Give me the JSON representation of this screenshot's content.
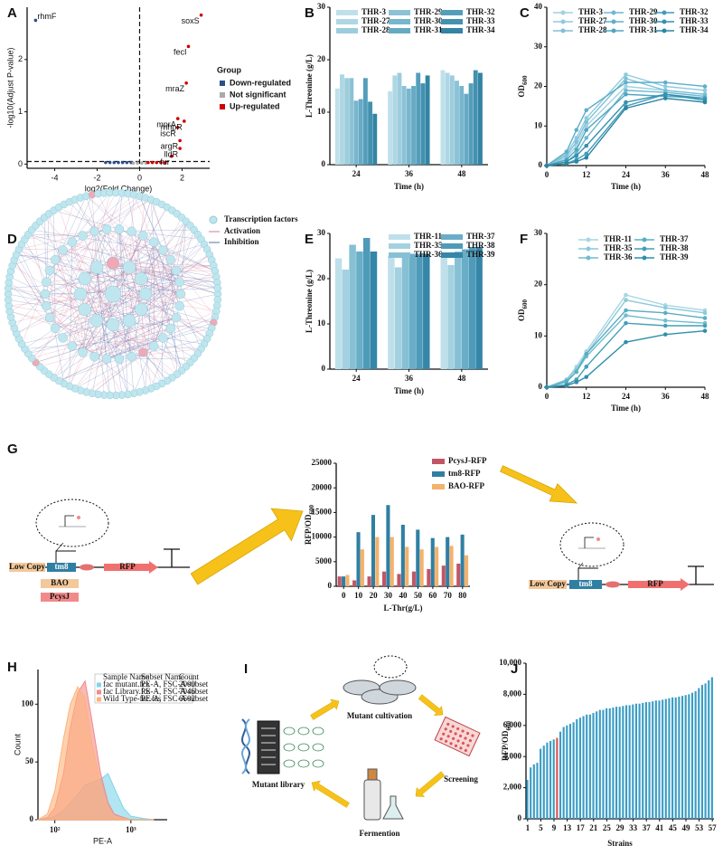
{
  "panels": [
    "A",
    "B",
    "C",
    "D",
    "E",
    "F",
    "G",
    "H",
    "I",
    "J"
  ],
  "network": {
    "legend": [
      "Transcription factors",
      "Activation",
      "Inhibition"
    ]
  },
  "construct_left": {
    "labels": [
      "Low Copy",
      "tm8",
      "BAO",
      "PcysJ",
      "RFP"
    ]
  },
  "construct_right": {
    "labels": [
      "Low Copy",
      "tm8",
      "RFP"
    ]
  },
  "workflow": {
    "steps": [
      "Mutant library",
      "Mutant cultivation",
      "Screening",
      "Fermention"
    ]
  },
  "chart_data": [
    {
      "type": "scatter",
      "xlabel": "log2(Fold Change)",
      "ylabel": "-log10(Adjust P-value)",
      "xlim": [
        -5.3,
        3.3
      ],
      "ylim": [
        -0.08,
        3.0
      ],
      "xticks": [
        -4,
        -2,
        0,
        2
      ],
      "yticks": [
        0,
        1,
        2
      ],
      "hlines": [
        0.05
      ],
      "vlines": [
        0
      ],
      "legend_title": "Group",
      "series": [
        {
          "name": "Down-regulated",
          "color": "#2b4f8c",
          "x": [
            -4.9,
            -1.6,
            -1.4,
            -1.2,
            -1.0,
            -0.8,
            -0.6,
            -0.4
          ],
          "values": [
            2.75,
            0.03,
            0.03,
            0.03,
            0.03,
            0.03,
            0.03,
            0.03
          ],
          "point_labels": [
            "rhmF",
            null,
            null,
            null,
            null,
            null,
            null,
            null
          ]
        },
        {
          "name": "Not significant",
          "color": "#aaaaaa",
          "x": [
            -0.3,
            -0.1,
            0.1,
            0.3
          ],
          "values": [
            0.02,
            0.02,
            0.02,
            0.02
          ]
        },
        {
          "name": "Up-regulated",
          "color": "#cc0000",
          "x": [
            0.4,
            0.6,
            0.8,
            1.0,
            1.2,
            1.5,
            1.9,
            1.9,
            1.8,
            2.1,
            1.8,
            2.2,
            2.3,
            2.9
          ],
          "values": [
            0.03,
            0.03,
            0.03,
            0.03,
            0.03,
            0.15,
            0.3,
            0.45,
            0.7,
            0.82,
            0.87,
            1.55,
            2.25,
            2.85
          ],
          "point_labels": [
            null,
            null,
            null,
            null,
            null,
            "fur",
            "lldR",
            "argR",
            "iscR",
            "mhpR",
            "mprA",
            "mraZ",
            "fecI",
            "soxS"
          ]
        }
      ]
    },
    {
      "type": "bar",
      "ylabel": "L-Threonine (g/L)",
      "xlabel": "Time (h)",
      "categories": [
        "24",
        "36",
        "48"
      ],
      "ylim": [
        0,
        30
      ],
      "yticks": [
        0,
        10,
        20,
        30
      ],
      "series": [
        {
          "name": "THR-3",
          "color": "#bfe0ea",
          "values": [
            14.5,
            14,
            18
          ]
        },
        {
          "name": "THR-27",
          "color": "#aed7e4",
          "values": [
            17.2,
            17,
            17.5
          ]
        },
        {
          "name": "THR-28",
          "color": "#9dcddd",
          "values": [
            16.5,
            17.5,
            17
          ]
        },
        {
          "name": "THR-29",
          "color": "#8bc2d6",
          "values": [
            16.5,
            15,
            16
          ]
        },
        {
          "name": "THR-30",
          "color": "#78b6cd",
          "values": [
            12.2,
            14.5,
            15
          ]
        },
        {
          "name": "THR-31",
          "color": "#66aac4",
          "values": [
            12.5,
            15,
            13.5
          ]
        },
        {
          "name": "THR-32",
          "color": "#549eba",
          "values": [
            16.5,
            17.5,
            15.5
          ]
        },
        {
          "name": "THR-33",
          "color": "#4391af",
          "values": [
            12,
            15.5,
            18
          ]
        },
        {
          "name": "THR-34",
          "color": "#3384a4",
          "values": [
            9.7,
            17,
            17.5
          ]
        }
      ]
    },
    {
      "type": "line",
      "ylabel": [
        "OD",
        "600"
      ],
      "xlabel": "Time (h)",
      "x": [
        0,
        6,
        9,
        12,
        24,
        36,
        48
      ],
      "xlim": [
        0,
        48
      ],
      "xticks": [
        0,
        12,
        24,
        36,
        48
      ],
      "ylim": [
        0,
        40
      ],
      "yticks": [
        0,
        10,
        20,
        30,
        40
      ],
      "series": [
        {
          "name": "THR-3",
          "color": "#9fd2e2",
          "values": [
            0,
            2,
            5,
            10,
            20,
            19,
            18
          ]
        },
        {
          "name": "THR-27",
          "color": "#8fcadd",
          "values": [
            0,
            3,
            7,
            12,
            23,
            20,
            19
          ]
        },
        {
          "name": "THR-28",
          "color": "#7fc1d7",
          "values": [
            0,
            2.5,
            6,
            11,
            22,
            19,
            18
          ]
        },
        {
          "name": "THR-29",
          "color": "#6fb8d0",
          "values": [
            0,
            1,
            3,
            7,
            19,
            18.5,
            17.5
          ]
        },
        {
          "name": "THR-30",
          "color": "#5fafc9",
          "values": [
            0,
            3.5,
            9,
            14,
            21,
            21,
            20
          ]
        },
        {
          "name": "THR-31",
          "color": "#50a5c1",
          "values": [
            0,
            1.5,
            4,
            9,
            18,
            17.5,
            17
          ]
        },
        {
          "name": "THR-32",
          "color": "#429bb8",
          "values": [
            0,
            0.5,
            1.5,
            3,
            15,
            18,
            17
          ]
        },
        {
          "name": "THR-33",
          "color": "#3591af",
          "values": [
            0,
            1,
            2.5,
            5,
            16,
            18,
            16.5
          ]
        },
        {
          "name": "THR-34",
          "color": "#2a86a4",
          "values": [
            0,
            0.5,
            1,
            2,
            14.5,
            17,
            16
          ]
        }
      ]
    },
    {
      "type": "bar",
      "ylabel": "L-Threonine (g/L)",
      "xlabel": "Time (h)",
      "categories": [
        "24",
        "36",
        "48"
      ],
      "ylim": [
        0,
        30
      ],
      "yticks": [
        0,
        10,
        20,
        30
      ],
      "series": [
        {
          "name": "THR-11",
          "color": "#bfe0ea",
          "values": [
            24.5,
            25,
            25
          ]
        },
        {
          "name": "THR-35",
          "color": "#a3d1e0",
          "values": [
            22,
            22.5,
            23
          ]
        },
        {
          "name": "THR-36",
          "color": "#86c0d4",
          "values": [
            27.5,
            25.5,
            26
          ]
        },
        {
          "name": "THR-37",
          "color": "#69adc7",
          "values": [
            26,
            25.5,
            26.5
          ]
        },
        {
          "name": "THR-38",
          "color": "#4e9ab9",
          "values": [
            29,
            25.5,
            27
          ]
        },
        {
          "name": "THR-39",
          "color": "#3586a8",
          "values": [
            26,
            25.5,
            27
          ]
        }
      ]
    },
    {
      "type": "line",
      "ylabel": [
        "OD",
        "600"
      ],
      "xlabel": "Time (h)",
      "x": [
        0,
        6,
        9,
        12,
        24,
        36,
        48
      ],
      "xlim": [
        0,
        48
      ],
      "xticks": [
        0,
        12,
        24,
        36,
        48
      ],
      "ylim": [
        0,
        30
      ],
      "yticks": [
        0,
        10,
        20,
        30
      ],
      "series": [
        {
          "name": "THR-11",
          "color": "#a6d6e4",
          "values": [
            0,
            1.5,
            4,
            7,
            18,
            16,
            15
          ]
        },
        {
          "name": "THR-35",
          "color": "#8ccad9",
          "values": [
            0,
            1.5,
            3.5,
            6.5,
            17,
            15.5,
            14.5
          ]
        },
        {
          "name": "THR-36",
          "color": "#72bccf",
          "values": [
            0,
            1,
            3,
            6,
            14,
            13,
            12.5
          ]
        },
        {
          "name": "THR-37",
          "color": "#5aaec4",
          "values": [
            0,
            1.2,
            3,
            6.5,
            15,
            14.5,
            13.5
          ]
        },
        {
          "name": "THR-38",
          "color": "#449fb8",
          "values": [
            0,
            0.5,
            1.5,
            4,
            12.5,
            12,
            12
          ]
        },
        {
          "name": "THR-39",
          "color": "#2f8fab",
          "values": [
            0,
            0.3,
            1,
            2,
            8.8,
            10.3,
            11
          ]
        }
      ]
    },
    {
      "type": "bar",
      "ylabel": [
        "RFP/OD",
        "600"
      ],
      "xlabel": "L-Thr(g/L)",
      "categories": [
        "0",
        "10",
        "20",
        "30",
        "40",
        "50",
        "60",
        "70",
        "80"
      ],
      "ylim": [
        0,
        25000
      ],
      "yticks": [
        0,
        5000,
        10000,
        15000,
        20000,
        25000
      ],
      "series": [
        {
          "name": "PcysJ-RFP",
          "color": "#c25565",
          "values": [
            2000,
            1200,
            2000,
            3000,
            2500,
            3000,
            3500,
            4200,
            4600
          ]
        },
        {
          "name": "tm8-RFP",
          "color": "#2f7fa3",
          "values": [
            2000,
            11000,
            14500,
            16500,
            12500,
            11500,
            9800,
            10000,
            10500
          ]
        },
        {
          "name": "BAO-RFP",
          "color": "#f5b26b",
          "values": [
            2300,
            7500,
            10000,
            10000,
            8000,
            7500,
            8000,
            8200,
            6300
          ]
        }
      ]
    },
    {
      "type": "area",
      "xlabel": "PE-A",
      "ylabel": "Count",
      "log_x": true,
      "x": [
        60,
        80,
        100,
        130,
        160,
        200,
        250,
        300,
        400,
        500,
        600,
        800,
        1000,
        1500,
        2000
      ],
      "xlim": [
        60,
        3000
      ],
      "xticks": [
        {
          "value": 100,
          "label": "10²"
        },
        {
          "value": 1000,
          "label": "10³"
        }
      ],
      "ylim": [
        0,
        130
      ],
      "yticks": [
        0,
        50,
        100
      ],
      "legend_table": {
        "header": [
          "Sample Name",
          "Subset Name",
          "Count"
        ],
        "rows": [
          [
            "fac mutant.fcs",
            "PE-A, FSC-A subset",
            2000
          ],
          [
            "fac Library.fcs",
            "PE-A, FSC-A subset",
            7046
          ],
          [
            "Wild Type-fac.fcs",
            "PE-A, FSC-A subset",
            6602
          ]
        ]
      },
      "series": [
        {
          "color": "#7fd4ea",
          "values": [
            0,
            1,
            3,
            8,
            15,
            22,
            30,
            32,
            35,
            40,
            28,
            10,
            3,
            1,
            0
          ]
        },
        {
          "color": "#f28a8a",
          "values": [
            0,
            2,
            10,
            40,
            80,
            110,
            120,
            90,
            40,
            15,
            5,
            2,
            0,
            0,
            0
          ]
        },
        {
          "color": "#ffb27a",
          "values": [
            0,
            5,
            25,
            70,
            100,
            115,
            105,
            70,
            30,
            10,
            3,
            1,
            0,
            0,
            0
          ]
        }
      ]
    },
    {
      "type": "bar",
      "ylabel": [
        "RFP/OD",
        "600"
      ],
      "xlabel": "Strains",
      "categories": [
        "1",
        null,
        null,
        null,
        "5",
        null,
        null,
        null,
        "9",
        null,
        null,
        null,
        "13",
        null,
        null,
        null,
        "17",
        null,
        null,
        null,
        "21",
        null,
        null,
        null,
        "25",
        null,
        null,
        null,
        "29",
        null,
        null,
        null,
        "33",
        null,
        null,
        null,
        "37",
        null,
        null,
        null,
        "41",
        null,
        null,
        null,
        "45",
        null,
        null,
        null,
        "49",
        null,
        null,
        null,
        "53",
        null,
        null,
        null,
        "57"
      ],
      "ylim": [
        0,
        10000
      ],
      "yticks": [
        {
          "value": 0,
          "label": "0"
        },
        {
          "value": 2000,
          "label": "2,000"
        },
        {
          "value": 4000,
          "label": "4,000"
        },
        {
          "value": 6000,
          "label": "6,000"
        },
        {
          "value": 8000,
          "label": "8,000"
        },
        {
          "value": 10000,
          "label": "10,000"
        }
      ],
      "series": [
        {
          "color": "#3a9cc4",
          "highlight": {
            "9": "#e05050"
          },
          "values": [
            2500,
            3300,
            3500,
            3600,
            4500,
            4700,
            4900,
            5000,
            5100,
            5200,
            5600,
            5900,
            6000,
            6100,
            6200,
            6400,
            6500,
            6600,
            6700,
            6700,
            6800,
            6900,
            7000,
            7000,
            7100,
            7100,
            7150,
            7200,
            7200,
            7250,
            7300,
            7300,
            7350,
            7400,
            7400,
            7450,
            7500,
            7500,
            7550,
            7600,
            7600,
            7650,
            7700,
            7750,
            7800,
            7800,
            7850,
            7900,
            7950,
            8000,
            8100,
            8200,
            8400,
            8600,
            8700,
            8900,
            9100
          ]
        }
      ]
    }
  ]
}
